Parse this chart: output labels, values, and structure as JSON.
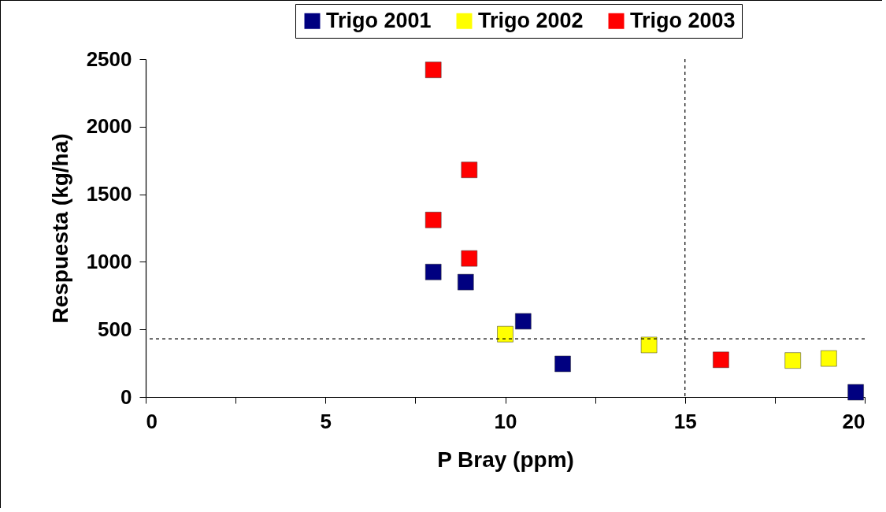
{
  "chart_data": {
    "type": "scatter",
    "xlabel": "P Bray (ppm)",
    "ylabel": "Respuesta (kg/ha)",
    "xlim": [
      0,
      20
    ],
    "ylim": [
      0,
      2500
    ],
    "xticks": [
      0,
      {
        "value": 2.5,
        "label": null
      },
      5,
      {
        "value": 7.5,
        "label": null
      },
      10,
      {
        "value": 12.5,
        "label": null
      },
      15,
      {
        "value": 17.5,
        "label": null
      },
      20
    ],
    "yticks": [
      0,
      500,
      1000,
      1500,
      2000,
      2500
    ],
    "grid": false,
    "legend": "top right",
    "marker": "square",
    "series": [
      {
        "name": "Trigo 2001",
        "color": "#000080",
        "x": [
          8,
          8.9,
          10.5,
          11.6,
          19.75
        ],
        "values": [
          925,
          850,
          560,
          245,
          35
        ]
      },
      {
        "name": "Trigo 2002",
        "color": "#ffff00",
        "x": [
          10,
          14,
          18,
          19
        ],
        "values": [
          465,
          385,
          270,
          285
        ]
      },
      {
        "name": "Trigo 2003",
        "color": "#ff0000",
        "x": [
          8,
          9,
          8,
          9,
          16
        ],
        "values": [
          2420,
          1680,
          1310,
          1025,
          275
        ]
      }
    ],
    "ref_lines": [
      {
        "axis": "y",
        "value": 430,
        "line_style": "dashed"
      },
      {
        "axis": "x",
        "value": 15,
        "line_style": "dashed"
      }
    ]
  }
}
